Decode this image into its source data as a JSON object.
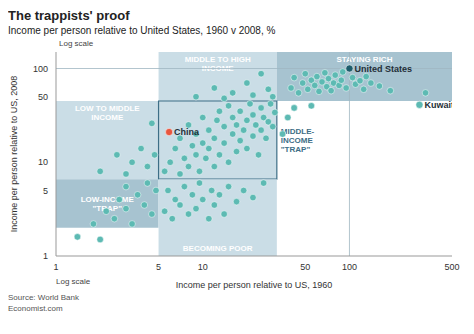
{
  "chart_data": {
    "type": "scatter",
    "title": "The trappists' proof",
    "subtitle": "Income per person relative to United States, 1960 v 2008, %",
    "x_label": "Income per person relative to US, 1960",
    "y_label": "Income per person relative to US, 2008",
    "axis_note": "Log scale",
    "source": "Source: World Bank",
    "credit": "Economist.com",
    "log": true,
    "grid": false,
    "color": "#5dbab3",
    "xlim": [
      1,
      500
    ],
    "ylim": [
      1,
      150
    ],
    "xticks": [
      1,
      5,
      10,
      50,
      100,
      500
    ],
    "yticks": [
      1,
      5,
      10,
      50,
      100
    ],
    "x": [
      40,
      42,
      45,
      48,
      50,
      52,
      55,
      58,
      60,
      62,
      65,
      68,
      70,
      72,
      75,
      78,
      80,
      85,
      88,
      90,
      95,
      105,
      110,
      118,
      125,
      130,
      140,
      160,
      190,
      330,
      38,
      42,
      55,
      35,
      9,
      12,
      14,
      16,
      20,
      22,
      25,
      28,
      30,
      5.5,
      6,
      6.5,
      7,
      7,
      7.5,
      8,
      8,
      8.5,
      9,
      9,
      9.5,
      10,
      10,
      10.5,
      11,
      11,
      12,
      12,
      12.5,
      13,
      13,
      14,
      14,
      15,
      15,
      16,
      16,
      17,
      17,
      18,
      18,
      19,
      20,
      20,
      21,
      22,
      22,
      23,
      24,
      25,
      25,
      26,
      27,
      28,
      29,
      30,
      31,
      2,
      2.6,
      3,
      3.3,
      3.8,
      4.2,
      4.5,
      4.7,
      1.4,
      1.8,
      2,
      2.2,
      2.5,
      2.7,
      3,
      3,
      3.3,
      3.6,
      4,
      4.2,
      4.5,
      4.8,
      5.5,
      5.8,
      6.2,
      6.5,
      7,
      7.5,
      8,
      8.5,
      9,
      9.5,
      10,
      11,
      11.5,
      12,
      13,
      14,
      15,
      17,
      19,
      22,
      26
    ],
    "values": [
      62,
      80,
      55,
      70,
      88,
      60,
      75,
      66,
      82,
      57,
      72,
      90,
      64,
      78,
      58,
      70,
      85,
      66,
      75,
      92,
      62,
      80,
      68,
      74,
      60,
      82,
      70,
      65,
      58,
      55,
      30,
      38,
      40,
      20,
      50,
      62,
      48,
      55,
      70,
      52,
      88,
      60,
      50,
      8,
      10,
      14,
      7.5,
      18,
      11,
      9,
      25,
      15,
      12,
      20,
      8,
      16,
      30,
      11,
      22,
      14,
      9,
      18,
      28,
      12,
      35,
      16,
      24,
      10,
      40,
      20,
      30,
      13,
      25,
      17,
      35,
      22,
      14,
      28,
      42,
      19,
      32,
      25,
      12,
      22,
      38,
      30,
      18,
      27,
      42,
      24,
      34,
      8,
      12,
      7.5,
      10,
      14,
      9,
      26,
      12,
      1.6,
      2.2,
      1.5,
      3,
      2.5,
      4,
      3.2,
      5.5,
      2.2,
      4.5,
      3.5,
      6,
      2.8,
      5,
      3,
      5,
      2.5,
      4,
      3.5,
      5.5,
      2.8,
      4.5,
      3.2,
      6,
      4,
      2.5,
      5,
      3.5,
      4.5,
      2.8,
      5.5,
      3.8,
      5,
      4.2,
      6
    ],
    "annotations": [
      {
        "text": "China",
        "x": 5.9,
        "y": 21,
        "color": "#e8563f"
      },
      {
        "text": "United States",
        "x": 100,
        "y": 100,
        "color": "#1d5d6c"
      },
      {
        "text": "Kuwait",
        "x": 300,
        "y": 41,
        "color": "#5dbab3"
      }
    ],
    "reference_lines": {
      "x": [
        100
      ],
      "y": [
        100
      ]
    },
    "regions": [
      {
        "label": [
          "MIDDLE TO HIGH",
          "INCOME"
        ],
        "x": [
          5,
          32
        ],
        "y": [
          45,
          150
        ],
        "color": "#cadde6"
      },
      {
        "label": [
          "STAYING RICH"
        ],
        "x": [
          32,
          500
        ],
        "y": [
          45,
          150
        ],
        "color": "#a7c3d0"
      },
      {
        "label": [
          "LOW TO MIDDLE",
          "INCOME"
        ],
        "x": [
          1,
          5
        ],
        "y": [
          6.6,
          45
        ],
        "color": "#cadde6"
      },
      {
        "label": [
          "MIDDLE-",
          "INCOME",
          "\"TRAP\""
        ],
        "x": [
          5,
          32
        ],
        "y": [
          6.6,
          45
        ],
        "color": "#cadde6",
        "line_style": "solid"
      },
      {
        "label": [
          "LOW-INCOME",
          "\"TRAP\""
        ],
        "x": [
          1,
          5
        ],
        "y": [
          2,
          6.6
        ],
        "color": "#a7c3d0"
      },
      {
        "label": [
          "BECOMING POOR"
        ],
        "x": [
          5,
          32
        ],
        "y": [
          1,
          6.6
        ],
        "color": "#cadde6"
      }
    ]
  }
}
